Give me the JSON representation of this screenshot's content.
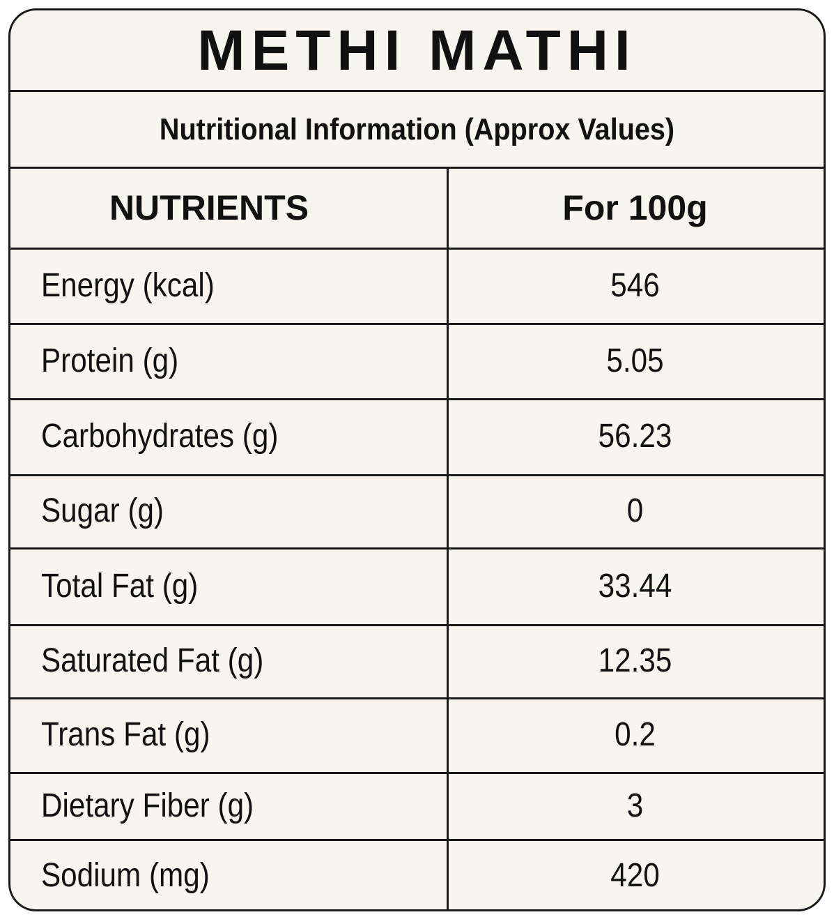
{
  "title": "METHI MATHI",
  "subtitle": "Nutritional Information (Approx Values)",
  "table": {
    "header": [
      "NUTRIENTS",
      "For 100g"
    ],
    "rows": [
      [
        "Energy (kcal)",
        "546"
      ],
      [
        "Protein (g)",
        "5.05"
      ],
      [
        "Carbohydrates (g)",
        "56.23"
      ],
      [
        "Sugar (g)",
        "0"
      ],
      [
        "Total Fat (g)",
        "33.44"
      ],
      [
        "Saturated Fat (g)",
        "12.35"
      ],
      [
        "Trans Fat (g)",
        "0.2"
      ],
      [
        "Dietary Fiber (g)",
        "3"
      ],
      [
        "Sodium (mg)",
        "420"
      ]
    ]
  }
}
